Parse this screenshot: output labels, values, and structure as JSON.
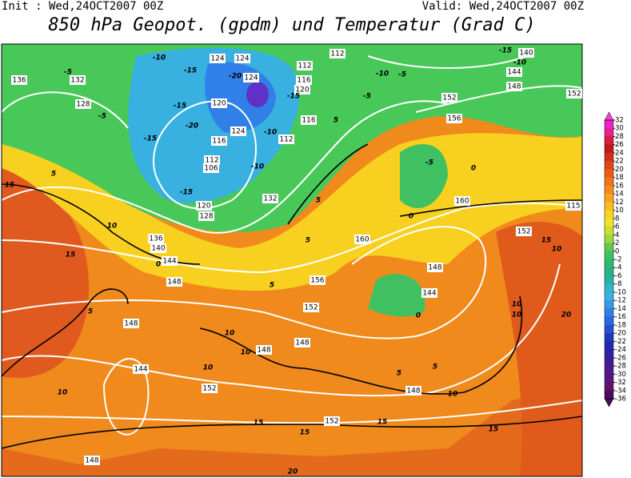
{
  "header": {
    "init": "Init : Wed,24OCT2007 00Z",
    "valid": "Valid: Wed,24OCT2007 00Z",
    "title": "850 hPa Geopot. (gpdm) und Temperatur (Grad C)"
  },
  "geopotential_labels": [
    136,
    132,
    128,
    124,
    124,
    124,
    112,
    116,
    120,
    116,
    112,
    120,
    124,
    116,
    112,
    106,
    132,
    128,
    120,
    136,
    140,
    144,
    148,
    152,
    156,
    160,
    148,
    144,
    148,
    148,
    144,
    152,
    148,
    148,
    152,
    148,
    160,
    152,
    156,
    152,
    148,
    144,
    140,
    115,
    152,
    112
  ],
  "temperature_labels": [
    -10,
    -15,
    -20,
    -15,
    -20,
    -15,
    -15,
    -10,
    -5,
    -5,
    -10,
    -15,
    -5,
    -10,
    -5,
    -15,
    -10,
    -5,
    0,
    0,
    5,
    5,
    5,
    5,
    5,
    0,
    10,
    15,
    15,
    5,
    10,
    10,
    10,
    15,
    10,
    10,
    10,
    20,
    15,
    15,
    15,
    15,
    20,
    10,
    0,
    10,
    5,
    5
  ],
  "colorbar": {
    "ticks": [
      32,
      30,
      28,
      26,
      24,
      22,
      20,
      18,
      16,
      14,
      12,
      10,
      8,
      6,
      4,
      2,
      0,
      -2,
      -4,
      -6,
      -8,
      -10,
      -12,
      -14,
      -16,
      -18,
      -20,
      -22,
      -24,
      -26,
      -28,
      -30,
      -32,
      -34,
      -36
    ],
    "colors": [
      "#f020c8",
      "#e8208c",
      "#d81c3c",
      "#c41818",
      "#d42c18",
      "#e04418",
      "#e85c18",
      "#f07418",
      "#f48c1c",
      "#f8a420",
      "#f8bc20",
      "#f8d420",
      "#f0e428",
      "#c8e030",
      "#9cd83c",
      "#60c850",
      "#40c060",
      "#30b870",
      "#28b088",
      "#28b0a8",
      "#30b8c8",
      "#38b0e0",
      "#3898e8",
      "#3080e8",
      "#2868e0",
      "#2450d0",
      "#2038c0",
      "#2028b0",
      "#3020a0",
      "#401c98",
      "#50188c",
      "#581480",
      "#601070",
      "#500860"
    ],
    "top_color": "#f040d8",
    "bottom_color": "#40105a"
  }
}
